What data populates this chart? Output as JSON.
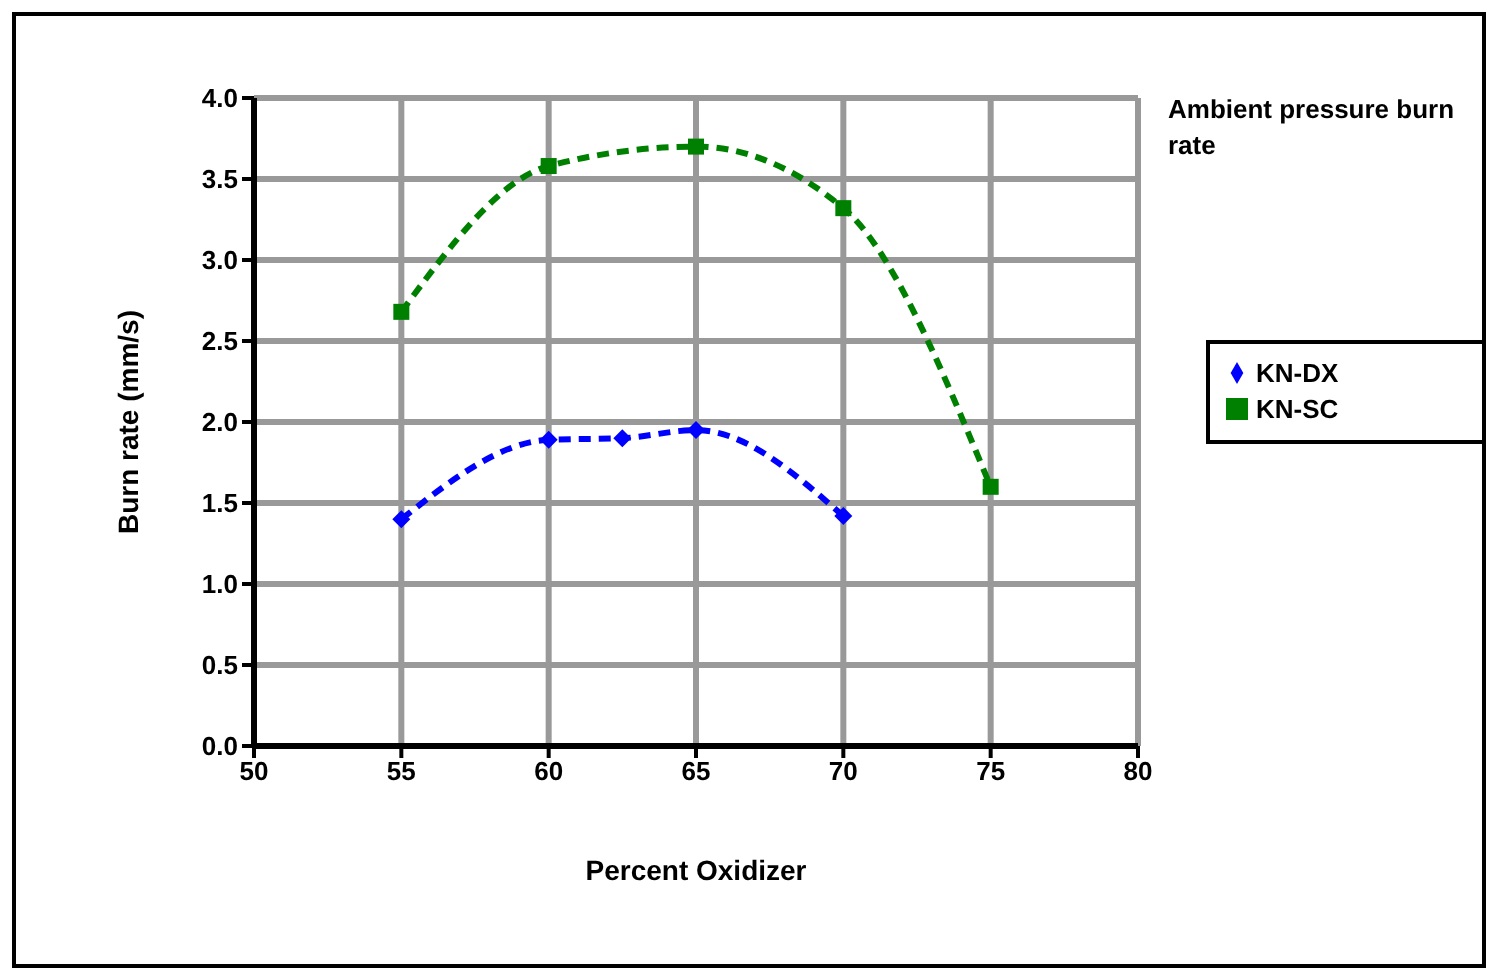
{
  "chart_data": {
    "type": "line",
    "title": "Ambient pressure burn rate",
    "xlabel": "Percent Oxidizer",
    "ylabel": "Burn rate  (mm/s)",
    "series": [
      {
        "name": "KN-DX",
        "color": "#0000ff",
        "marker": "diamond",
        "x": [
          55,
          60,
          62.5,
          65,
          70
        ],
        "values": [
          1.4,
          1.89,
          1.9,
          1.95,
          1.42
        ]
      },
      {
        "name": "KN-SC",
        "color": "#008000",
        "marker": "square",
        "x": [
          55,
          60,
          65,
          70,
          75
        ],
        "values": [
          2.68,
          3.58,
          3.7,
          3.32,
          1.6
        ]
      }
    ],
    "xlim": [
      50,
      80
    ],
    "xticks": [
      50,
      55,
      60,
      65,
      70,
      75,
      80
    ],
    "ylim": [
      0,
      4
    ],
    "yticks": [
      {
        "value": 0,
        "label": "0.0"
      },
      {
        "value": 0.5,
        "label": "0.5"
      },
      {
        "value": 1,
        "label": "1.0"
      },
      {
        "value": 1.5,
        "label": "1.5"
      },
      {
        "value": 2,
        "label": "2.0"
      },
      {
        "value": 2.5,
        "label": "2.5"
      },
      {
        "value": 3,
        "label": "3.0"
      },
      {
        "value": 3.5,
        "label": "3.5"
      },
      {
        "value": 4,
        "label": "4.0"
      }
    ],
    "grid": true,
    "legend": "right",
    "line_style": "dashed"
  }
}
